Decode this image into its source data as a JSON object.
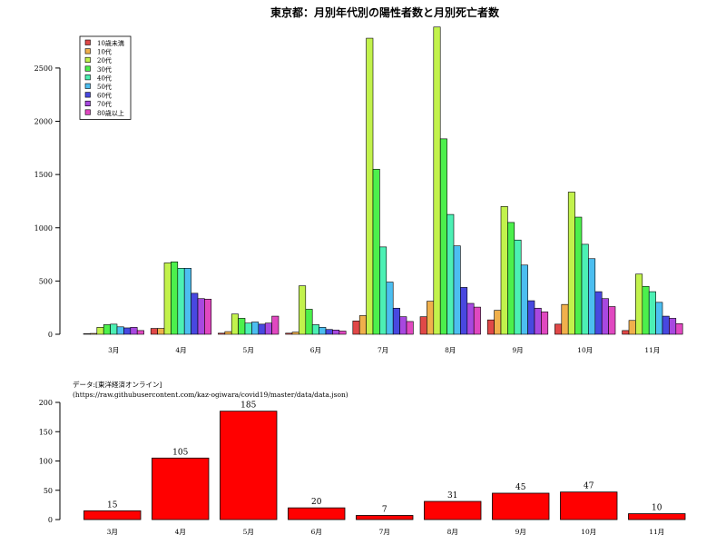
{
  "chart_data": [
    {
      "type": "bar",
      "title": "東京都：月別年代別の陽性者数と月別死亡者数",
      "categories": [
        "3月",
        "4月",
        "5月",
        "6月",
        "7月",
        "8月",
        "9月",
        "10月",
        "11月"
      ],
      "ylim": [
        0,
        2900
      ],
      "yticks": [
        0,
        500,
        1000,
        1500,
        2000,
        2500
      ],
      "legend_position": "top-left",
      "series": [
        {
          "name": "10歳未満",
          "color": "#e04848",
          "values": [
            5,
            55,
            10,
            10,
            125,
            165,
            135,
            95,
            35
          ]
        },
        {
          "name": "10代",
          "color": "#f0b04c",
          "values": [
            8,
            55,
            25,
            20,
            175,
            310,
            225,
            280,
            130
          ]
        },
        {
          "name": "20代",
          "color": "#c2f24c",
          "values": [
            65,
            670,
            190,
            455,
            2780,
            2885,
            1200,
            1335,
            565
          ]
        },
        {
          "name": "30代",
          "color": "#4cf04c",
          "values": [
            90,
            680,
            150,
            235,
            1550,
            1835,
            1050,
            1100,
            450
          ]
        },
        {
          "name": "40代",
          "color": "#4cf0b4",
          "values": [
            95,
            620,
            105,
            90,
            820,
            1125,
            885,
            845,
            400
          ]
        },
        {
          "name": "50代",
          "color": "#4cbef0",
          "values": [
            70,
            620,
            115,
            65,
            490,
            830,
            650,
            710,
            300
          ]
        },
        {
          "name": "60代",
          "color": "#4848e0",
          "values": [
            60,
            385,
            95,
            45,
            245,
            440,
            315,
            400,
            170
          ]
        },
        {
          "name": "70代",
          "color": "#a848e0",
          "values": [
            65,
            335,
            105,
            40,
            165,
            290,
            245,
            335,
            150
          ]
        },
        {
          "name": "80歳以上",
          "color": "#e048c0",
          "values": [
            35,
            330,
            170,
            30,
            120,
            255,
            210,
            260,
            100
          ]
        }
      ]
    },
    {
      "type": "bar",
      "title": "",
      "subtitle_lines": [
        "データ:[東洋経済オンライン]",
        "(https://raw.githubusercontent.com/kaz-ogiwara/covid19/master/data/data.json)"
      ],
      "categories": [
        "3月",
        "4月",
        "5月",
        "6月",
        "7月",
        "8月",
        "9月",
        "10月",
        "11月"
      ],
      "ylim": [
        0,
        200
      ],
      "yticks": [
        0,
        50,
        100,
        150,
        200
      ],
      "series": [
        {
          "color": "#ff0000",
          "values": [
            15,
            105,
            185,
            20,
            7,
            31,
            45,
            47,
            10
          ]
        }
      ],
      "data_labels": [
        "15",
        "105",
        "185",
        "20",
        "7",
        "31",
        "45",
        "47",
        "10"
      ]
    }
  ]
}
